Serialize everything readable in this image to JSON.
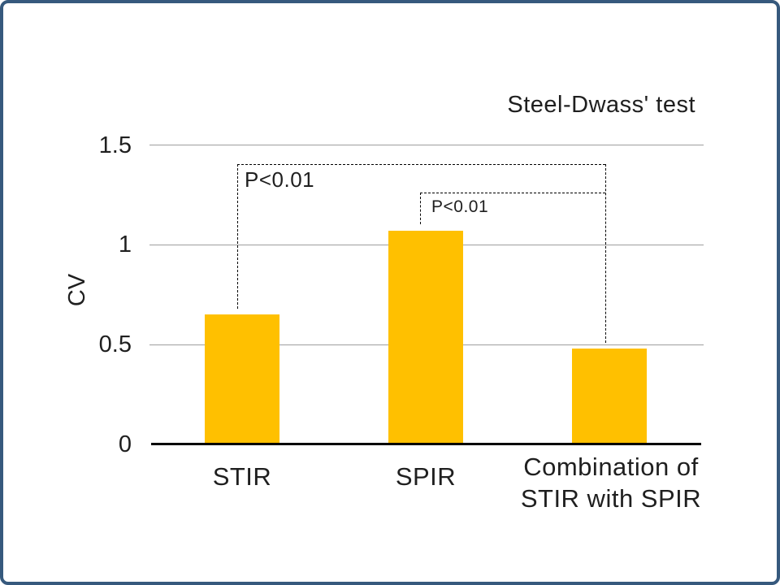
{
  "chart_data": {
    "type": "bar",
    "title": "Steel-Dwass' test",
    "xlabel": "",
    "ylabel": "CV",
    "categories": [
      "STIR",
      "SPIR",
      "Combination of STIR with SPIR"
    ],
    "values": [
      0.65,
      1.07,
      0.48
    ],
    "ylim": [
      0,
      1.5
    ],
    "ytick_labels_top_to_bottom": [
      "1.5",
      "1",
      "0.5",
      "0"
    ],
    "grid": true,
    "legend": false,
    "annotations": [
      {
        "text": "P<0.01",
        "connects": [
          "STIR",
          "Combination of STIR with SPIR"
        ]
      },
      {
        "text": "P<0.01",
        "connects": [
          "SPIR",
          "Combination of STIR with SPIR"
        ]
      }
    ]
  },
  "colors": {
    "bar": "#FFC000",
    "frame": "#36597D",
    "gridline": "#9E9E9E",
    "axis": "#000000",
    "background": "#FFFFFF",
    "text": "#1F1F1F"
  }
}
